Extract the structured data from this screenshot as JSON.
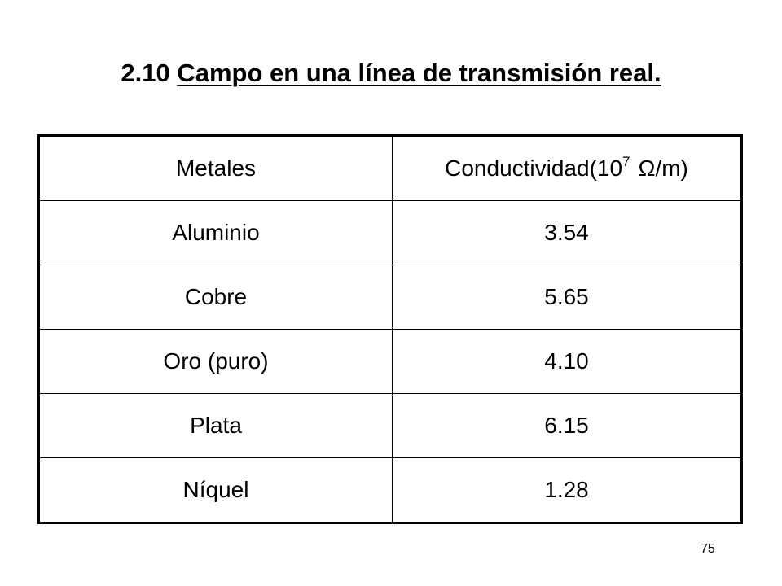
{
  "header": {
    "number": "2.10",
    "title": "Campo en una línea de transmisión real."
  },
  "table": {
    "columns": [
      {
        "text": "Metales"
      },
      {
        "text": "Conductividad(10",
        "sup": "7",
        "after": "Ω/m)"
      }
    ],
    "rows": [
      [
        "Aluminio",
        "3.54"
      ],
      [
        "Cobre",
        "5.65"
      ],
      [
        "Oro (puro)",
        "4.10"
      ],
      [
        "Plata",
        "6.15"
      ],
      [
        "Níquel",
        "1.28"
      ]
    ]
  },
  "footer": {
    "page": "75"
  }
}
